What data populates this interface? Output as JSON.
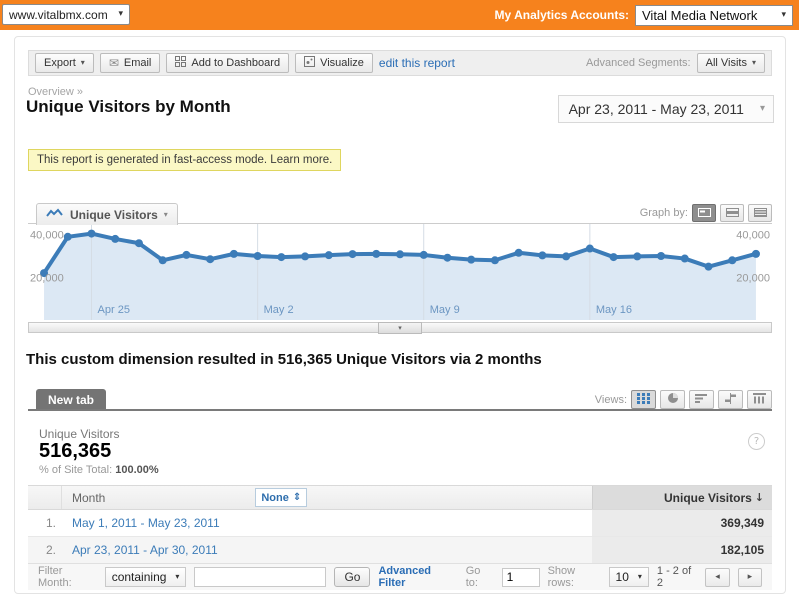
{
  "colors": {
    "orange": "#F6821D",
    "link_blue": "#2A6DB5",
    "accent_blue": "#3C7CB8"
  },
  "icons": {
    "caret": "▾",
    "email": "✉",
    "question": "?",
    "sort_desc": "↓",
    "sort_both": "⇕",
    "prev": "◂",
    "next": "▸",
    "collapse": "▾"
  },
  "top_bar": {
    "site_select": "www.vitalbmx.com",
    "accounts_label": "My Analytics Accounts:",
    "account_select": "Vital Media Network"
  },
  "toolbar": {
    "export_label": "Export",
    "email_label": "Email",
    "add_to_dashboard_label": "Add to Dashboard",
    "visualize_label": "Visualize",
    "edit_report_link": "edit this report",
    "advanced_segments_label": "Advanced Segments:",
    "advanced_segments_value": "All Visits"
  },
  "breadcrumb": "Overview »",
  "page": {
    "title": "Unique Visitors by Month",
    "date_range": "Apr 23, 2011 - May 23, 2011"
  },
  "notice": {
    "text": "This report is generated in fast-access mode. Learn more."
  },
  "chart_header": {
    "metric_button_label": "Unique Visitors",
    "graph_by_label": "Graph by:"
  },
  "chart_data": {
    "type": "line",
    "series_name": "Unique Visitors",
    "x": [
      "Apr 23",
      "Apr 24",
      "Apr 25",
      "Apr 26",
      "Apr 27",
      "Apr 28",
      "Apr 29",
      "Apr 30",
      "May 1",
      "May 2",
      "May 3",
      "May 4",
      "May 5",
      "May 6",
      "May 7",
      "May 8",
      "May 9",
      "May 10",
      "May 11",
      "May 12",
      "May 13",
      "May 14",
      "May 15",
      "May 16",
      "May 17",
      "May 18",
      "May 19",
      "May 20",
      "May 21",
      "May 22",
      "May 23"
    ],
    "values": [
      22000,
      39000,
      40500,
      38000,
      36000,
      28000,
      30500,
      28500,
      31000,
      30000,
      29500,
      29800,
      30400,
      30900,
      31000,
      30800,
      30500,
      29200,
      28300,
      28000,
      31500,
      30300,
      29800,
      33500,
      29500,
      29800,
      30000,
      28800,
      25000,
      28000,
      31000
    ],
    "yticks": [
      20000,
      40000
    ],
    "ytick_labels": [
      "20,000",
      "40,000"
    ],
    "xticks": [
      "Apr 25",
      "May 2",
      "May 9",
      "May 16"
    ],
    "xtick_indices": [
      2,
      9,
      16,
      23
    ],
    "ymax": 45000,
    "ylim": [
      0,
      45000
    ],
    "grid": "vertical-only",
    "legend_position": "none",
    "color": "#3C7CB8",
    "fill_color": "#DCE8F4",
    "grid_color": "#D5DDE5",
    "xtick_color": "#6C96C2",
    "ytick_color": "#999999"
  },
  "summary": "This custom dimension resulted in 516,365 Unique Visitors via 2 months",
  "tab_bar": {
    "new_tab_label": "New tab",
    "views_label": "Views:"
  },
  "metric": {
    "name": "Unique Visitors",
    "value": "516,365",
    "site_total_label": "% of Site Total:",
    "site_total_value": "100.00%"
  },
  "table": {
    "month_header": "Month",
    "filter_value": "None",
    "value_header": "Unique Visitors",
    "rows": [
      {
        "index": "1.",
        "month": "May 1, 2011 - May 23, 2011",
        "value": "369,349"
      },
      {
        "index": "2.",
        "month": "Apr 23, 2011 - Apr 30, 2011",
        "value": "182,105"
      }
    ]
  },
  "footer": {
    "filter_label": "Filter Month:",
    "filter_operator": "containing",
    "go_button": "Go",
    "advanced_filter_link": "Advanced Filter",
    "goto_label": "Go to:",
    "goto_value": "1",
    "show_rows_label": "Show rows:",
    "show_rows_value": "10",
    "range_text": "1 - 2 of 2"
  }
}
